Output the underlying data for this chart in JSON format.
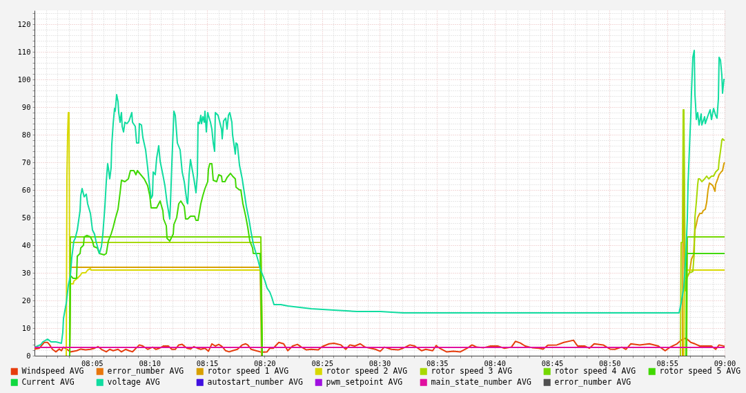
{
  "chart_data": {
    "type": "line",
    "xlim": [
      8.0,
      9.0
    ],
    "xticks": [
      {
        "value": 8.0167,
        "label": null
      },
      {
        "value": 8.0333,
        "label": null
      },
      {
        "value": 8.05,
        "label": null
      },
      {
        "value": 8.0667,
        "label": null
      },
      {
        "value": 8.0833,
        "label": "08:05"
      },
      {
        "value": 8.1,
        "label": null
      },
      {
        "value": 8.1167,
        "label": null
      },
      {
        "value": 8.1333,
        "label": null
      },
      {
        "value": 8.15,
        "label": null
      },
      {
        "value": 8.1667,
        "label": "08:10"
      },
      {
        "value": 8.1833,
        "label": null
      },
      {
        "value": 8.2,
        "label": null
      },
      {
        "value": 8.2167,
        "label": null
      },
      {
        "value": 8.2333,
        "label": null
      },
      {
        "value": 8.25,
        "label": "08:15"
      },
      {
        "value": 8.2667,
        "label": null
      },
      {
        "value": 8.2833,
        "label": null
      },
      {
        "value": 8.3,
        "label": null
      },
      {
        "value": 8.3167,
        "label": null
      },
      {
        "value": 8.3333,
        "label": "08:20"
      },
      {
        "value": 8.35,
        "label": null
      },
      {
        "value": 8.3667,
        "label": null
      },
      {
        "value": 8.3833,
        "label": null
      },
      {
        "value": 8.4,
        "label": null
      },
      {
        "value": 8.4167,
        "label": "08:25"
      },
      {
        "value": 8.4333,
        "label": null
      },
      {
        "value": 8.45,
        "label": null
      },
      {
        "value": 8.4667,
        "label": null
      },
      {
        "value": 8.4833,
        "label": null
      },
      {
        "value": 8.5,
        "label": "08:30"
      },
      {
        "value": 8.5167,
        "label": null
      },
      {
        "value": 8.5333,
        "label": null
      },
      {
        "value": 8.55,
        "label": null
      },
      {
        "value": 8.5667,
        "label": null
      },
      {
        "value": 8.5833,
        "label": "08:35"
      },
      {
        "value": 8.6,
        "label": null
      },
      {
        "value": 8.6167,
        "label": null
      },
      {
        "value": 8.6333,
        "label": null
      },
      {
        "value": 8.65,
        "label": null
      },
      {
        "value": 8.6667,
        "label": "08:40"
      },
      {
        "value": 8.6833,
        "label": null
      },
      {
        "value": 8.7,
        "label": null
      },
      {
        "value": 8.7167,
        "label": null
      },
      {
        "value": 8.7333,
        "label": null
      },
      {
        "value": 8.75,
        "label": "08:45"
      },
      {
        "value": 8.7667,
        "label": null
      },
      {
        "value": 8.7833,
        "label": null
      },
      {
        "value": 8.8,
        "label": null
      },
      {
        "value": 8.8167,
        "label": null
      },
      {
        "value": 8.8333,
        "label": "08:50"
      },
      {
        "value": 8.85,
        "label": null
      },
      {
        "value": 8.8667,
        "label": null
      },
      {
        "value": 8.8833,
        "label": null
      },
      {
        "value": 8.9,
        "label": null
      },
      {
        "value": 8.9167,
        "label": "08:55"
      },
      {
        "value": 8.9333,
        "label": null
      },
      {
        "value": 8.95,
        "label": null
      },
      {
        "value": 8.9667,
        "label": null
      },
      {
        "value": 8.9833,
        "label": null
      },
      {
        "value": 9.0,
        "label": "09:00"
      }
    ],
    "ylim": [
      0,
      125
    ],
    "yticks": [
      0,
      {
        "value": 2,
        "label": null
      },
      {
        "value": 4,
        "label": null
      },
      {
        "value": 6,
        "label": null
      },
      {
        "value": 8,
        "label": null
      },
      10,
      {
        "value": 12,
        "label": null
      },
      {
        "value": 14,
        "label": null
      },
      {
        "value": 16,
        "label": null
      },
      {
        "value": 18,
        "label": null
      },
      20,
      {
        "value": 22,
        "label": null
      },
      {
        "value": 24,
        "label": null
      },
      {
        "value": 26,
        "label": null
      },
      {
        "value": 28,
        "label": null
      },
      30,
      {
        "value": 32,
        "label": null
      },
      {
        "value": 34,
        "label": null
      },
      {
        "value": 36,
        "label": null
      },
      {
        "value": 38,
        "label": null
      },
      40,
      {
        "value": 42,
        "label": null
      },
      {
        "value": 44,
        "label": null
      },
      {
        "value": 46,
        "label": null
      },
      {
        "value": 48,
        "label": null
      },
      50,
      {
        "value": 52,
        "label": null
      },
      {
        "value": 54,
        "label": null
      },
      {
        "value": 56,
        "label": null
      },
      {
        "value": 58,
        "label": null
      },
      60,
      {
        "value": 62,
        "label": null
      },
      {
        "value": 64,
        "label": null
      },
      {
        "value": 66,
        "label": null
      },
      {
        "value": 68,
        "label": null
      },
      70,
      {
        "value": 72,
        "label": null
      },
      {
        "value": 74,
        "label": null
      },
      {
        "value": 76,
        "label": null
      },
      {
        "value": 78,
        "label": null
      },
      80,
      {
        "value": 82,
        "label": null
      },
      {
        "value": 84,
        "label": null
      },
      {
        "value": 86,
        "label": null
      },
      {
        "value": 88,
        "label": null
      },
      90,
      {
        "value": 92,
        "label": null
      },
      {
        "value": 94,
        "label": null
      },
      {
        "value": 96,
        "label": null
      },
      {
        "value": 98,
        "label": null
      },
      100,
      {
        "value": 102,
        "label": null
      },
      {
        "value": 104,
        "label": null
      },
      {
        "value": 106,
        "label": null
      },
      {
        "value": 108,
        "label": null
      },
      110,
      {
        "value": 112,
        "label": null
      },
      {
        "value": 114,
        "label": null
      },
      {
        "value": 116,
        "label": null
      },
      {
        "value": 118,
        "label": null
      },
      120,
      {
        "value": 122,
        "label": null
      },
      {
        "value": 124,
        "label": null
      }
    ],
    "grid": true,
    "legend": "bottom",
    "series": [
      {
        "name": "Windspeed AVG",
        "color": "#e63c0c",
        "x": [
          8.0,
          8.007,
          8.014,
          8.019,
          8.022,
          8.026,
          8.031,
          8.036,
          8.039,
          8.042,
          8.047,
          8.052,
          8.061,
          8.067,
          8.074,
          8.081,
          8.087,
          8.092,
          8.097,
          8.104,
          8.109,
          8.114,
          8.121,
          8.126,
          8.132,
          8.137,
          8.142,
          8.147,
          8.152,
          8.157,
          8.164,
          8.171,
          8.176,
          8.181,
          8.187,
          8.194,
          8.199,
          8.204,
          8.209,
          8.214,
          8.221,
          8.226,
          8.231,
          8.236,
          8.241,
          8.247,
          8.252,
          8.257,
          8.262,
          8.267,
          8.272,
          8.277,
          8.282,
          8.287,
          8.294,
          8.301,
          8.306,
          8.309,
          8.314,
          8.321,
          8.327,
          8.332,
          8.337,
          8.341,
          8.346,
          8.354,
          8.361,
          8.367,
          8.374,
          8.381,
          8.387,
          8.394,
          8.401,
          8.411,
          8.417,
          8.427,
          8.434,
          8.444,
          8.451,
          8.457,
          8.464,
          8.472,
          8.479,
          8.487,
          8.494,
          8.501,
          8.507,
          8.517,
          8.527,
          8.534,
          8.544,
          8.551,
          8.561,
          8.567,
          8.577,
          8.582,
          8.587,
          8.597,
          8.607,
          8.617,
          8.627,
          8.634,
          8.641,
          8.651,
          8.661,
          8.671,
          8.681,
          8.691,
          8.697,
          8.704,
          8.711,
          8.721,
          8.731,
          8.737,
          8.744,
          8.757,
          8.767,
          8.781,
          8.787,
          8.797,
          8.804,
          8.811,
          8.824,
          8.834,
          8.841,
          8.851,
          8.857,
          8.864,
          8.877,
          8.891,
          8.904,
          8.914,
          8.921,
          8.931,
          8.937,
          8.944,
          8.951,
          8.957,
          8.964,
          8.974,
          8.981,
          8.987,
          8.992,
          9.0
        ],
        "values": [
          2.4,
          2.7,
          4.8,
          4.8,
          3.9,
          2.3,
          1.4,
          2.4,
          1.8,
          3.1,
          2.3,
          1.4,
          1.8,
          2.4,
          2.1,
          2.3,
          2.7,
          3.3,
          2.3,
          1.4,
          2.3,
          1.8,
          2.3,
          1.4,
          2.3,
          1.8,
          1.4,
          2.7,
          3.9,
          3.5,
          2.3,
          3.1,
          2.3,
          2.7,
          3.5,
          3.5,
          2.3,
          2.3,
          3.9,
          4.1,
          2.7,
          2.4,
          3.3,
          2.7,
          2.3,
          2.7,
          1.6,
          4.3,
          3.5,
          4.1,
          3.3,
          1.8,
          1.4,
          1.8,
          2.3,
          3.9,
          4.3,
          3.9,
          2.3,
          1.8,
          1.4,
          1.3,
          1.4,
          2.7,
          2.7,
          4.8,
          4.3,
          1.8,
          3.5,
          4.1,
          3.1,
          2.1,
          2.3,
          2.1,
          3.3,
          4.3,
          4.5,
          3.9,
          2.3,
          3.9,
          3.5,
          4.3,
          3.1,
          2.7,
          2.3,
          1.6,
          3.1,
          2.3,
          2.1,
          2.7,
          3.9,
          3.5,
          1.8,
          2.3,
          1.8,
          3.7,
          2.7,
          1.4,
          1.6,
          1.4,
          2.7,
          3.9,
          3.1,
          2.9,
          3.5,
          3.5,
          2.7,
          3.1,
          5.2,
          4.6,
          3.5,
          2.9,
          2.7,
          2.4,
          3.8,
          3.9,
          4.8,
          5.6,
          3.5,
          3.5,
          2.7,
          4.3,
          3.9,
          2.4,
          2.3,
          3.1,
          2.3,
          4.3,
          3.9,
          4.3,
          3.5,
          1.8,
          3.1,
          4.3,
          5.6,
          6.4,
          4.8,
          4.3,
          3.5,
          3.5,
          3.5,
          2.3,
          3.9,
          3.4
        ]
      },
      {
        "name": "error_number AVG",
        "color": "#e8760c"
      },
      {
        "name": "rotor speed 1 AVG",
        "color": "#d8a000",
        "x": [
          8.051,
          8.052,
          8.327,
          8.329,
          8.5,
          8.939,
          8.94,
          8.941,
          8.942,
          8.945,
          8.949,
          8.952,
          8.955,
          8.957,
          8.959,
          8.961,
          8.964,
          8.967,
          8.969,
          8.972,
          8.974,
          8.976,
          8.978,
          8.981,
          8.983,
          8.986,
          8.987,
          8.99,
          8.992,
          8.995,
          8.997,
          8.999,
          9.0
        ],
        "values": [
          0,
          32,
          32,
          0,
          null,
          0,
          76,
          76,
          28,
          28,
          30,
          35,
          36.5,
          45.5,
          47.5,
          50,
          51.5,
          51.5,
          52.5,
          53,
          55.5,
          60,
          62.5,
          62,
          61.5,
          59.5,
          62,
          64,
          65.5,
          66.5,
          67,
          69.5,
          70
        ]
      },
      {
        "name": "rotor speed 2 AVG",
        "color": "#d8d800",
        "x": [
          8.046,
          8.047,
          8.048,
          8.049,
          8.05,
          8.051,
          8.056,
          8.057,
          8.062,
          8.066,
          8.069,
          8.074,
          8.077,
          8.081,
          8.082,
          8.327,
          8.329,
          8.33,
          8.5,
          8.941,
          8.942,
          9.0
        ],
        "values": [
          0,
          65,
          80,
          88,
          88,
          26,
          26,
          27,
          28,
          29,
          30,
          30,
          31,
          31.5,
          31,
          31,
          25,
          0,
          null,
          0,
          31,
          31
        ]
      },
      {
        "name": "rotor speed 3 AVG",
        "color": "#a8d800",
        "x": [
          8.051,
          8.052,
          8.328,
          8.33,
          8.5,
          8.936,
          8.937,
          8.939,
          8.94,
          8.941,
          8.943,
          8.946,
          8.949,
          8.954,
          8.956,
          8.957,
          8.959,
          8.961,
          8.962,
          8.964,
          8.967,
          8.971,
          8.974,
          8.977,
          8.981,
          8.984,
          8.987,
          8.991,
          8.992,
          8.994,
          8.996,
          8.997,
          8.999,
          9.0
        ],
        "values": [
          0,
          41,
          41,
          0,
          null,
          0,
          41,
          41,
          89,
          89,
          23.5,
          29,
          30,
          30.5,
          37,
          50,
          55.5,
          62,
          64,
          64,
          63,
          64,
          65,
          64,
          65,
          65,
          66.5,
          67.5,
          70.5,
          74,
          78,
          78.5,
          78,
          78
        ]
      },
      {
        "name": "rotor speed 4 AVG",
        "color": "#74d800",
        "x": [
          8.051,
          8.052,
          8.328,
          8.33,
          8.5,
          8.945,
          8.946,
          9.0
        ],
        "values": [
          0,
          43,
          43,
          0,
          null,
          0,
          43,
          43
        ]
      },
      {
        "name": "rotor speed 5 AVG",
        "color": "#40d800",
        "x": [
          8.051,
          8.052,
          8.056,
          8.061,
          8.062,
          8.066,
          8.067,
          8.071,
          8.072,
          8.076,
          8.081,
          8.084,
          8.086,
          8.091,
          8.094,
          8.101,
          8.104,
          8.107,
          8.111,
          8.114,
          8.117,
          8.121,
          8.124,
          8.126,
          8.131,
          8.136,
          8.139,
          8.144,
          8.147,
          8.149,
          8.154,
          8.159,
          8.164,
          8.167,
          8.169,
          8.177,
          8.182,
          8.186,
          8.187,
          8.191,
          8.192,
          8.196,
          8.201,
          8.202,
          8.206,
          8.209,
          8.212,
          8.217,
          8.219,
          8.222,
          8.226,
          8.232,
          8.234,
          8.237,
          8.241,
          8.244,
          8.247,
          8.251,
          8.252,
          8.254,
          8.257,
          8.259,
          8.264,
          8.267,
          8.271,
          8.272,
          8.276,
          8.279,
          8.284,
          8.287,
          8.291,
          8.292,
          8.297,
          8.299,
          8.302,
          8.306,
          8.309,
          8.312,
          8.316,
          8.317,
          8.327,
          8.33,
          8.5,
          8.944,
          8.945,
          9.0
        ],
        "values": [
          0,
          29,
          28,
          28,
          36,
          37,
          39,
          40,
          43,
          43.5,
          43,
          41.5,
          39.5,
          39,
          37,
          36.5,
          37,
          41.5,
          44,
          46.5,
          49.5,
          53,
          59,
          63.5,
          63,
          64,
          67,
          67,
          65.5,
          67,
          65.5,
          64,
          61.5,
          58,
          53.5,
          53.5,
          56,
          52.5,
          49.5,
          47,
          42.5,
          41.5,
          44,
          47.5,
          50,
          55,
          56,
          54,
          49.5,
          49.5,
          50.5,
          50.5,
          49,
          49,
          55,
          58,
          60.5,
          63,
          67.5,
          69.5,
          69.5,
          63.5,
          63,
          65.5,
          65,
          63,
          63,
          64.5,
          66,
          65,
          64,
          61,
          60,
          60,
          55,
          50.5,
          46.5,
          41.5,
          39,
          37,
          37,
          0,
          null,
          0,
          37,
          37
        ]
      },
      {
        "name": "Current AVG",
        "color": "#10d840"
      },
      {
        "name": "voltage AVG",
        "color": "#10dca0",
        "x": [
          8.0,
          8.009,
          8.012,
          8.019,
          8.024,
          8.031,
          8.039,
          8.041,
          8.042,
          8.046,
          8.049,
          8.052,
          8.054,
          8.057,
          8.059,
          8.062,
          8.066,
          8.067,
          8.069,
          8.072,
          8.075,
          8.077,
          8.081,
          8.084,
          8.087,
          8.089,
          8.094,
          8.097,
          8.099,
          8.102,
          8.104,
          8.106,
          8.107,
          8.109,
          8.111,
          8.112,
          8.114,
          8.116,
          8.117,
          8.119,
          8.121,
          8.122,
          8.124,
          8.126,
          8.127,
          8.129,
          8.131,
          8.134,
          8.137,
          8.141,
          8.142,
          8.146,
          8.148,
          8.151,
          8.152,
          8.155,
          8.157,
          8.161,
          8.164,
          8.166,
          8.169,
          8.171,
          8.172,
          8.175,
          8.177,
          8.18,
          8.182,
          8.186,
          8.189,
          8.192,
          8.196,
          8.197,
          8.199,
          8.201,
          8.202,
          8.204,
          8.207,
          8.211,
          8.214,
          8.217,
          8.221,
          8.222,
          8.224,
          8.226,
          8.227,
          8.231,
          8.234,
          8.236,
          8.237,
          8.239,
          8.241,
          8.242,
          8.244,
          8.246,
          8.247,
          8.249,
          8.251,
          8.252,
          8.255,
          8.257,
          8.259,
          8.261,
          8.262,
          8.266,
          8.267,
          8.271,
          8.272,
          8.274,
          8.277,
          8.279,
          8.281,
          8.283,
          8.286,
          8.287,
          8.291,
          8.292,
          8.294,
          8.297,
          8.301,
          8.304,
          8.307,
          8.311,
          8.314,
          8.317,
          8.321,
          8.324,
          8.327,
          8.331,
          8.334,
          8.337,
          8.341,
          8.344,
          8.347,
          8.357,
          8.367,
          8.384,
          8.401,
          8.434,
          8.467,
          8.501,
          8.534,
          8.567,
          8.601,
          8.634,
          8.667,
          8.701,
          8.751,
          8.801,
          8.851,
          8.901,
          8.934,
          8.937,
          8.941,
          8.944,
          8.946,
          8.947,
          8.949,
          8.951,
          8.952,
          8.954,
          8.956,
          8.957,
          8.958,
          8.959,
          8.961,
          8.963,
          8.966,
          8.967,
          8.971,
          8.972,
          8.976,
          8.979,
          8.981,
          8.984,
          8.987,
          8.989,
          8.991,
          8.992,
          8.994,
          8.996,
          8.997,
          8.998,
          8.999,
          9.0
        ],
        "values": [
          3,
          4,
          5,
          6,
          5,
          5,
          4.5,
          8.5,
          13.5,
          19,
          25.5,
          29,
          35.5,
          41.5,
          42.5,
          45.5,
          52.5,
          58,
          60.5,
          57.5,
          58.5,
          55,
          51.5,
          45.5,
          44,
          41.5,
          37,
          39.5,
          44,
          54,
          63,
          69.5,
          68,
          64,
          68,
          76.5,
          84,
          89.5,
          88.5,
          94.5,
          92,
          88,
          84.5,
          88,
          83,
          81,
          84.5,
          84,
          85,
          88,
          84.5,
          83,
          77,
          77,
          84,
          83.5,
          79,
          74.5,
          68,
          63,
          57,
          58,
          66.5,
          65.5,
          71.5,
          76,
          70.5,
          65.5,
          61.5,
          55.5,
          49.5,
          55,
          69.5,
          82,
          88.5,
          87,
          77,
          74.5,
          66.5,
          63,
          55.5,
          55,
          65.5,
          71,
          69.5,
          64,
          59,
          65.5,
          84.5,
          84,
          87,
          84,
          86.5,
          84.5,
          88.5,
          81,
          88,
          87,
          84.5,
          82,
          77,
          74,
          88,
          87,
          86,
          82,
          78.5,
          85,
          86,
          82,
          87,
          88,
          84.5,
          80,
          73,
          77,
          76.5,
          69,
          64,
          59,
          54,
          49,
          44.5,
          40.5,
          37,
          34.5,
          31.5,
          29,
          27,
          24.5,
          23,
          21,
          18.5,
          18.5,
          18,
          17.5,
          17,
          16.5,
          16,
          16,
          15.5,
          15.5,
          15.5,
          15.5,
          15.5,
          15.5,
          15.5,
          15.5,
          15.5,
          15.5,
          15.5,
          19,
          25,
          37,
          50,
          62,
          75,
          87,
          95.5,
          108,
          110.5,
          94.5,
          90.5,
          85.5,
          88,
          83.5,
          87.5,
          83.5,
          86.5,
          84,
          87,
          89,
          85.5,
          89.5,
          87,
          86,
          93,
          108,
          107,
          101.5,
          95,
          97.5,
          100,
          100
        ]
      },
      {
        "name": "autostart_number AVG",
        "color": "#4010e0"
      },
      {
        "name": "pwm_setpoint AVG",
        "color": "#a010e0"
      },
      {
        "name": "main_state_number AVG",
        "color": "#e010a0",
        "x": [
          8.0,
          9.0
        ],
        "values": [
          3,
          3
        ]
      },
      {
        "name": "error_number AVG",
        "color": "#505050"
      }
    ]
  }
}
